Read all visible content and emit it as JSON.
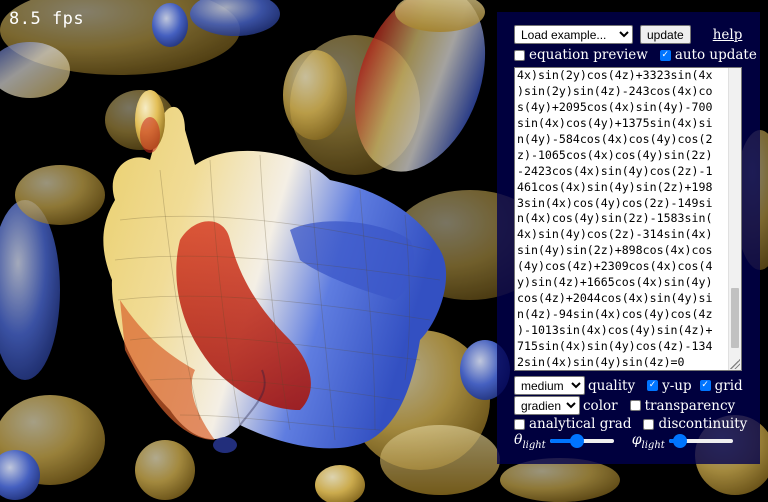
{
  "fps": {
    "text": "8.5 fps"
  },
  "toolbar": {
    "example_select": "Load example...",
    "update_label": "update",
    "help_label": "help"
  },
  "options": {
    "equation_preview": {
      "label": "equation preview",
      "checked": false
    },
    "auto_update": {
      "label": "auto update",
      "checked": true
    }
  },
  "editor": {
    "lines": [
      "4x)sin(2y)cos(4z)+3323sin(4x",
      ")sin(2y)sin(4z)-243cos(4x)co",
      "s(4y)+2095cos(4x)sin(4y)-700",
      "sin(4x)cos(4y)+1375sin(4x)si",
      "n(4y)-584cos(4x)cos(4y)cos(2",
      "z)-1065cos(4x)cos(4y)sin(2z)",
      "-2423cos(4x)sin(4y)cos(2z)-1",
      "461cos(4x)sin(4y)sin(2z)+198",
      "3sin(4x)cos(4y)cos(2z)-149si",
      "n(4x)cos(4y)sin(2z)-1583sin(",
      "4x)sin(4y)cos(2z)-314sin(4x)",
      "sin(4y)sin(2z)+898cos(4x)cos",
      "(4y)cos(4z)+2309cos(4x)cos(4",
      "y)sin(4z)+1665cos(4x)sin(4y)",
      "cos(4z)+2044cos(4x)sin(4y)si",
      "n(4z)-94sin(4x)cos(4y)cos(4z",
      ")-1013sin(4x)cos(4y)sin(4z)+",
      "715sin(4x)sin(4y)cos(4z)-134",
      "2sin(4x)sin(4y)sin(4z)=0"
    ]
  },
  "controls": {
    "quality_select": "medium",
    "quality_label": "quality",
    "y_up": {
      "label": "y-up",
      "checked": true
    },
    "grid": {
      "label": "grid",
      "checked": true
    },
    "color_select": "gradient",
    "color_label": "color",
    "transparency": {
      "label": "transparency",
      "checked": false
    },
    "analytical_grad": {
      "label": "analytical grad",
      "checked": false
    },
    "discontinuity": {
      "label": "discontinuity",
      "checked": false
    },
    "theta_light": {
      "symbol": "θ",
      "sub": "light",
      "value": 0.42
    },
    "phi_light": {
      "symbol": "φ",
      "sub": "light",
      "value": 0.18
    }
  },
  "colors": {
    "panel_bg": "#000050",
    "accent": "#0075ff",
    "surface_yellow": "#e8cf7a",
    "surface_red": "#c8241c",
    "surface_blue": "#3b57c8",
    "surface_white": "#f4f2ee"
  }
}
